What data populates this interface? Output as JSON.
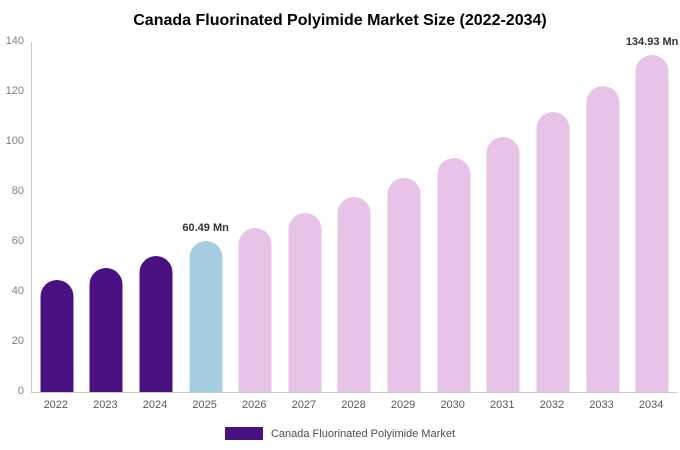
{
  "chart_data": {
    "type": "bar",
    "title": "Canada Fluorinated Polyimide Market Size (2022-2034)",
    "categories": [
      "2022",
      "2023",
      "2024",
      "2025",
      "2026",
      "2027",
      "2028",
      "2029",
      "2030",
      "2031",
      "2032",
      "2033",
      "2034"
    ],
    "values": [
      45,
      49.5,
      54.5,
      60.49,
      65.5,
      71.5,
      78,
      85.5,
      93.5,
      102,
      112,
      122.5,
      134.93
    ],
    "color_roles": [
      "historical",
      "historical",
      "historical",
      "highlight",
      "forecast",
      "forecast",
      "forecast",
      "forecast",
      "forecast",
      "forecast",
      "forecast",
      "forecast",
      "forecast"
    ],
    "colors": {
      "historical": "#4a1182",
      "highlight": "#a6cee3",
      "forecast": "#e7c3e7"
    },
    "annotations": [
      {
        "category": "2025",
        "text": "60.49 Mn"
      },
      {
        "category": "2034",
        "text": "134.93 Mn"
      }
    ],
    "xlabel": "",
    "ylabel": "",
    "ylim": [
      0,
      140
    ],
    "ytick_step": 20,
    "yticks": [
      0,
      20,
      40,
      60,
      80,
      100,
      120,
      140
    ],
    "grid": false,
    "legend_position": "bottom",
    "legend_label": "Canada Fluorinated Polyimide Market"
  }
}
